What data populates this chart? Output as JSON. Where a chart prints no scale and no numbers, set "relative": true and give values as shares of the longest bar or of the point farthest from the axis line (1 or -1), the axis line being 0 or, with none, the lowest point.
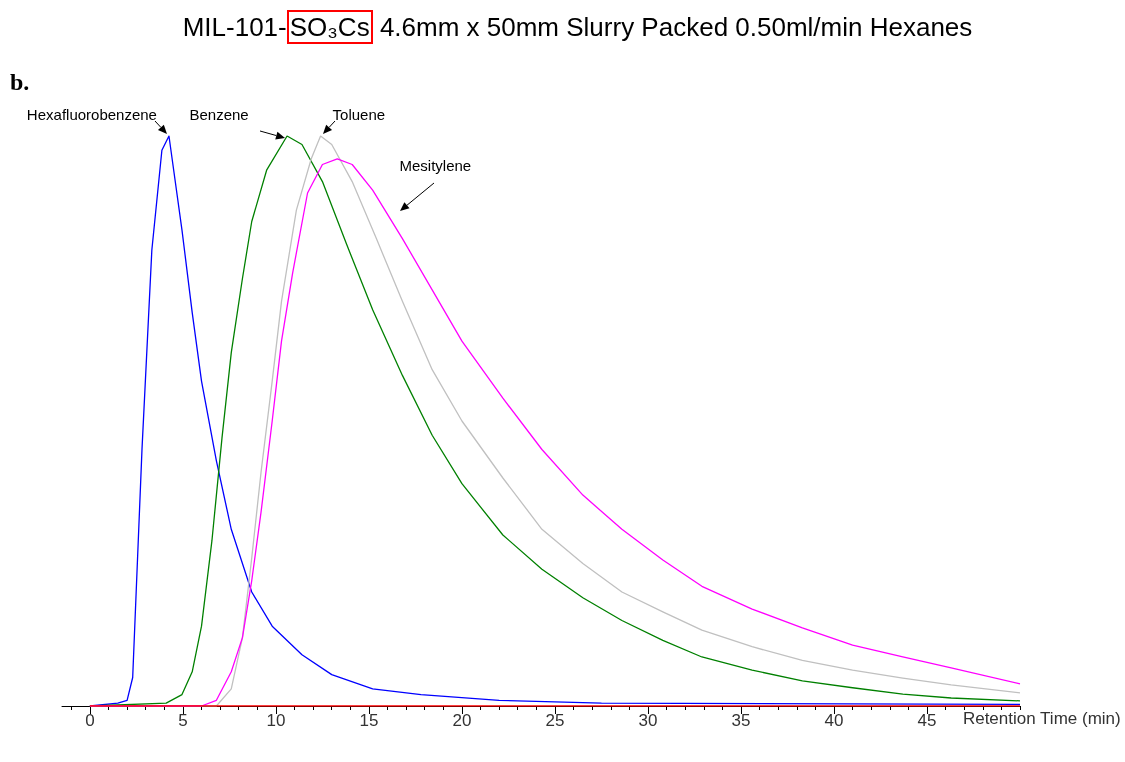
{
  "chart_data": {
    "type": "line",
    "title": "MIL-101-SO₃Cs 4.6mm x 50mm Slurry Packed 0.50ml/min Hexanes",
    "xlabel": "Retention Time (min)",
    "annotations": [
      "b."
    ],
    "relative": true,
    "legend": false,
    "grid": false,
    "marker": "none",
    "line_style": "solid",
    "xlim": [
      -1.5,
      50
    ],
    "xticks": [
      {
        "value": -1,
        "label": null
      },
      0,
      {
        "value": 1,
        "label": null
      },
      {
        "value": 2,
        "label": null
      },
      {
        "value": 3,
        "label": null
      },
      {
        "value": 4,
        "label": null
      },
      5,
      {
        "value": 6,
        "label": null
      },
      {
        "value": 7,
        "label": null
      },
      {
        "value": 8,
        "label": null
      },
      {
        "value": 9,
        "label": null
      },
      10,
      {
        "value": 11,
        "label": null
      },
      {
        "value": 12,
        "label": null
      },
      {
        "value": 13,
        "label": null
      },
      {
        "value": 14,
        "label": null
      },
      15,
      {
        "value": 16,
        "label": null
      },
      {
        "value": 17,
        "label": null
      },
      {
        "value": 18,
        "label": null
      },
      {
        "value": 19,
        "label": null
      },
      20,
      {
        "value": 21,
        "label": null
      },
      {
        "value": 22,
        "label": null
      },
      {
        "value": 23,
        "label": null
      },
      {
        "value": 24,
        "label": null
      },
      25,
      {
        "value": 26,
        "label": null
      },
      {
        "value": 27,
        "label": null
      },
      {
        "value": 28,
        "label": null
      },
      {
        "value": 29,
        "label": null
      },
      30,
      {
        "value": 31,
        "label": null
      },
      {
        "value": 32,
        "label": null
      },
      {
        "value": 33,
        "label": null
      },
      {
        "value": 34,
        "label": null
      },
      35,
      {
        "value": 36,
        "label": null
      },
      {
        "value": 37,
        "label": null
      },
      {
        "value": 38,
        "label": null
      },
      {
        "value": 39,
        "label": null
      },
      40,
      {
        "value": 41,
        "label": null
      },
      {
        "value": 42,
        "label": null
      },
      {
        "value": 43,
        "label": null
      },
      {
        "value": 44,
        "label": null
      },
      45,
      {
        "value": 46,
        "label": null
      },
      {
        "value": 47,
        "label": null
      },
      {
        "value": 48,
        "label": null
      },
      {
        "value": 49,
        "label": null
      },
      {
        "value": 50,
        "label": null
      }
    ],
    "series": [
      {
        "name": "Hexafluorobenzene",
        "color": "#0000ff",
        "x": [
          0,
          1.5,
          2,
          2.3,
          2.8,
          3.33,
          3.87,
          4.25,
          4.95,
          5.5,
          6.0,
          6.8,
          7.6,
          8.7,
          9.8,
          11.4,
          13,
          15.2,
          17.8,
          22,
          27.5,
          50
        ],
        "values": [
          0,
          0.005,
          0.01,
          0.05,
          0.45,
          0.8,
          0.975,
          1,
          0.835,
          0.69,
          0.57,
          0.43,
          0.31,
          0.2,
          0.14,
          0.09,
          0.055,
          0.03,
          0.02,
          0.01,
          0.005,
          0.003
        ]
      },
      {
        "name": "Benzene",
        "color": "#008000",
        "x": [
          0,
          4.1,
          4.95,
          5.5,
          6.0,
          6.56,
          7.1,
          7.6,
          8.2,
          8.7,
          9.5,
          10.6,
          11.4,
          12.5,
          13.8,
          15.2,
          16.8,
          18.4,
          20,
          22.2,
          24.3,
          26.5,
          28.6,
          30.8,
          32.9,
          35.6,
          38.3,
          41,
          43.7,
          46.3,
          50
        ],
        "values": [
          0,
          0.005,
          0.02,
          0.06,
          0.14,
          0.29,
          0.47,
          0.62,
          0.75,
          0.85,
          0.94,
          1.0,
          0.985,
          0.92,
          0.81,
          0.695,
          0.58,
          0.475,
          0.39,
          0.3,
          0.24,
          0.19,
          0.15,
          0.115,
          0.086,
          0.063,
          0.044,
          0.032,
          0.021,
          0.014,
          0.009
        ]
      },
      {
        "name": "Toluene",
        "color": "#c0c0c0",
        "x": [
          0,
          6.8,
          7.6,
          8.2,
          8.7,
          9.2,
          9.8,
          10.3,
          11.1,
          11.9,
          12.4,
          13,
          14.1,
          15.4,
          16.8,
          18.4,
          20,
          22.2,
          24.3,
          26.5,
          28.6,
          30.8,
          32.9,
          35.6,
          38.3,
          41,
          43.7,
          46.3,
          50
        ],
        "values": [
          0,
          0,
          0.03,
          0.12,
          0.26,
          0.41,
          0.57,
          0.71,
          0.87,
          0.96,
          1.0,
          0.985,
          0.92,
          0.82,
          0.71,
          0.59,
          0.5,
          0.4,
          0.31,
          0.25,
          0.2,
          0.165,
          0.133,
          0.104,
          0.08,
          0.063,
          0.049,
          0.037,
          0.023
        ]
      },
      {
        "name": "Mesitylene",
        "color": "#ff00ff",
        "x": [
          0,
          6.0,
          6.8,
          7.6,
          8.2,
          8.7,
          9.2,
          9.8,
          10.3,
          10.9,
          11.7,
          12.5,
          13.3,
          14.1,
          15.2,
          16.8,
          18.4,
          20,
          22.2,
          24.3,
          26.5,
          28.6,
          30.8,
          32.9,
          35.6,
          38.3,
          41,
          43.7,
          46.3,
          50
        ],
        "values": [
          0,
          0,
          0.01,
          0.06,
          0.12,
          0.22,
          0.34,
          0.5,
          0.64,
          0.76,
          0.9,
          0.95,
          0.96,
          0.95,
          0.905,
          0.82,
          0.73,
          0.64,
          0.54,
          0.45,
          0.37,
          0.31,
          0.256,
          0.21,
          0.17,
          0.137,
          0.107,
          0.086,
          0.067,
          0.039
        ]
      },
      {
        "color": "#ff0000",
        "x": [
          0,
          50
        ],
        "values": [
          0,
          0
        ]
      }
    ]
  }
}
